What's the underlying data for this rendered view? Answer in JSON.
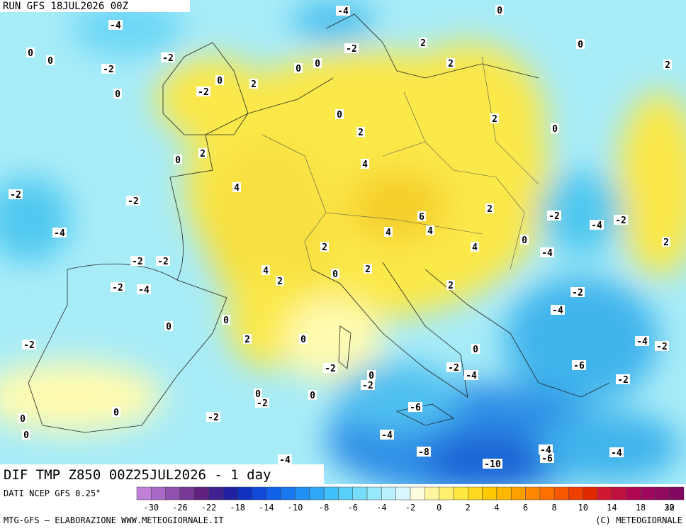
{
  "header": {
    "run": "RUN GFS 18JUL2026 00Z"
  },
  "map": {
    "title": "DIF TMP Z850 00Z25JUL2026 - 1 day",
    "contour_labels": [
      -4,
      -4,
      0,
      0,
      0,
      -2,
      -2,
      0,
      0,
      -2,
      2,
      2,
      0,
      2,
      0,
      -2,
      0,
      2,
      0,
      2,
      2,
      0,
      0,
      2,
      4,
      -2,
      -2,
      4,
      2,
      -2,
      -4,
      -2,
      6,
      -4,
      4,
      4,
      0,
      2,
      4,
      -4,
      -2,
      -2,
      2,
      0,
      2,
      4,
      2,
      -2,
      -4,
      2,
      -2,
      -4,
      0,
      0,
      2,
      0,
      -2,
      -4,
      -2,
      0,
      -2,
      0,
      -2,
      -4,
      -6,
      -2,
      -2,
      0,
      -2,
      0,
      0,
      -6,
      0,
      -2,
      0,
      -4,
      -8,
      -4,
      -6,
      -4,
      -4,
      -10
    ]
  },
  "colorbar": {
    "source": "DATI NCEP GFS 0.25°",
    "ticks": [
      -30,
      -26,
      -22,
      -18,
      -14,
      -10,
      -8,
      -6,
      -4,
      -2,
      0,
      2,
      4,
      6,
      8,
      10,
      14,
      18,
      22
    ],
    "tick_labels_last": 30,
    "colors": [
      "#c080d8",
      "#a868c8",
      "#9050b0",
      "#783898",
      "#602080",
      "#402090",
      "#2020a0",
      "#1030c0",
      "#1048d8",
      "#1060e8",
      "#1878f0",
      "#2090f5",
      "#30a8f8",
      "#40c0fa",
      "#58d0fa",
      "#78ddfb",
      "#98e8fc",
      "#b8f0fc",
      "#d8f8fd",
      "#fffde0",
      "#fff5a0",
      "#fff070",
      "#ffe840",
      "#ffd820",
      "#ffc800",
      "#ffb800",
      "#ffa000",
      "#ff8800",
      "#ff7000",
      "#f85800",
      "#f04000",
      "#e02800",
      "#d01830",
      "#c01040",
      "#b00850",
      "#a00860",
      "#900860",
      "#800860"
    ]
  },
  "footer": {
    "left": "MTG-GFS — ELABORAZIONE WWW.METEOGIORNALE.IT",
    "right": "(C) METEOGIORNALE"
  }
}
